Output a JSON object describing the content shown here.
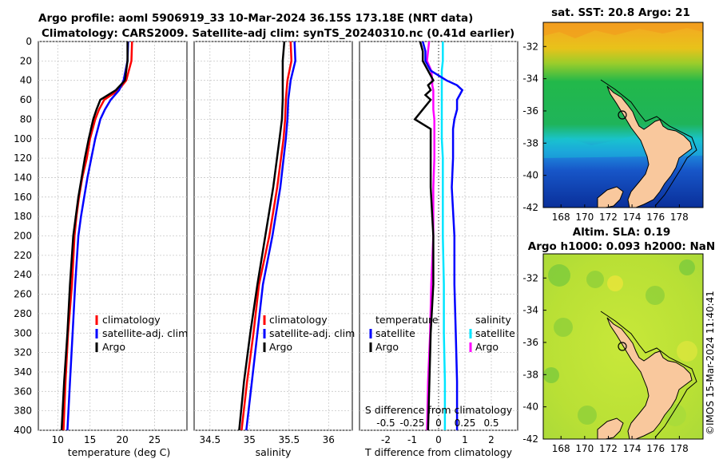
{
  "title": {
    "line1": "Argo profile: aoml 5906919_33 10-Mar-2024 36.15S 173.18E (NRT data)",
    "line2": "Climatology: CARS2009. Satellite-adj clim: synTS_20240310.nc (0.41d earlier)"
  },
  "map_sst_title": "sat. SST: 20.8 Argo: 21",
  "map_sla_title1": "Altim. SLA: 0.19",
  "map_sla_title2": "Argo h1000: 0.093 h2000: NaN",
  "stamp": "©IMOS 15-Mar-2024 11:40:41",
  "colors": {
    "climatology": "#ff0000",
    "satellite": "#0000ff",
    "argo": "#000000",
    "salt_sat": "#00e5ff",
    "salt_argo": "#ff00ff",
    "land": "#f9c89d"
  },
  "chart_data": [
    {
      "type": "line",
      "name": "temperature",
      "xlabel": "temperature (deg C)",
      "ylabel": "",
      "xlim": [
        7,
        30
      ],
      "ylim": [
        0,
        400
      ],
      "xticks": [
        10,
        15,
        20,
        25
      ],
      "yticks": [
        0,
        20,
        40,
        60,
        80,
        100,
        120,
        140,
        160,
        180,
        200,
        220,
        240,
        260,
        280,
        300,
        320,
        340,
        360,
        380,
        400
      ],
      "depth": [
        0,
        20,
        40,
        50,
        60,
        70,
        80,
        100,
        120,
        140,
        160,
        180,
        200,
        250,
        300,
        350,
        400
      ],
      "legend": [
        "climatology",
        "satellite-adj. clim",
        "Argo"
      ],
      "series": [
        {
          "name": "climatology",
          "values": [
            21.5,
            21.4,
            20.6,
            19.4,
            17.2,
            16.4,
            15.8,
            15.0,
            14.5,
            13.8,
            13.3,
            12.9,
            12.6,
            12.2,
            11.6,
            11.2,
            10.9
          ]
        },
        {
          "name": "satellite-adj. clim",
          "values": [
            20.9,
            20.8,
            20.2,
            19.5,
            18.2,
            17.3,
            16.6,
            15.8,
            15.2,
            14.6,
            14.1,
            13.6,
            13.2,
            12.7,
            12.3,
            11.9,
            11.5
          ]
        },
        {
          "name": "Argo",
          "values": [
            20.8,
            20.8,
            20.4,
            19.0,
            16.6,
            16.0,
            15.5,
            14.8,
            14.2,
            13.7,
            13.2,
            12.8,
            12.4,
            11.9,
            11.5,
            11.0,
            10.6
          ]
        }
      ]
    },
    {
      "type": "line",
      "name": "salinity",
      "xlabel": "salinity",
      "xlim": [
        34.3,
        36.3
      ],
      "ylim": [
        0,
        400
      ],
      "xticks": [
        34.5,
        35,
        35.5,
        36
      ],
      "depth": [
        0,
        20,
        40,
        60,
        80,
        100,
        150,
        200,
        250,
        300,
        350,
        400
      ],
      "legend": [
        "climatology",
        "satellite-adj. clim",
        "Argo"
      ],
      "series": [
        {
          "name": "climatology",
          "values": [
            35.52,
            35.53,
            35.48,
            35.46,
            35.45,
            35.43,
            35.35,
            35.25,
            35.12,
            35.05,
            34.97,
            34.9
          ]
        },
        {
          "name": "satellite-adj. clim",
          "values": [
            35.57,
            35.58,
            35.52,
            35.49,
            35.48,
            35.46,
            35.39,
            35.29,
            35.17,
            35.1,
            35.03,
            34.96
          ]
        },
        {
          "name": "Argo",
          "values": [
            35.44,
            35.42,
            35.42,
            35.42,
            35.41,
            35.38,
            35.3,
            35.2,
            35.1,
            35.01,
            34.93,
            34.87
          ]
        }
      ]
    },
    {
      "type": "line",
      "name": "differences",
      "xlabel": "T difference from climatology",
      "xlabel_top": "S difference from climatology",
      "xlim": [
        -3,
        3
      ],
      "ylim": [
        0,
        400
      ],
      "xticks": [
        -2,
        -1,
        0,
        1,
        2
      ],
      "xticks_top": [
        "-0.5",
        "-0.25",
        "0",
        "0.25",
        "0.5"
      ],
      "depth": [
        0,
        10,
        20,
        30,
        40,
        45,
        50,
        55,
        60,
        70,
        80,
        90,
        100,
        120,
        150,
        200,
        250,
        300,
        350,
        400
      ],
      "legend_t_title": "temperature",
      "legend_t": [
        "satellite",
        "Argo"
      ],
      "legend_s_title": "salinity",
      "legend_s": [
        "satellite",
        "Argo"
      ],
      "series": [
        {
          "name": "T satellite",
          "values": [
            -0.6,
            -0.5,
            -0.5,
            -0.3,
            0.3,
            0.7,
            0.9,
            0.8,
            0.7,
            0.7,
            0.6,
            0.55,
            0.55,
            0.55,
            0.5,
            0.6,
            0.6,
            0.65,
            0.7,
            0.7
          ]
        },
        {
          "name": "T Argo",
          "values": [
            -0.7,
            -0.6,
            -0.6,
            -0.4,
            -0.2,
            -0.4,
            -0.3,
            -0.5,
            -0.3,
            -0.6,
            -0.9,
            -0.3,
            -0.3,
            -0.3,
            -0.3,
            -0.2,
            -0.2,
            -0.3,
            -0.35,
            -0.4
          ]
        },
        {
          "name": "S satellite",
          "values": [
            0.04,
            0.04,
            0.04,
            0.03,
            0.03,
            0.03,
            0.03,
            0.03,
            0.03,
            0.03,
            0.03,
            0.03,
            0.03,
            0.04,
            0.04,
            0.04,
            0.05,
            0.05,
            0.06,
            0.06
          ]
        },
        {
          "name": "S Argo",
          "values": [
            -0.09,
            -0.1,
            -0.11,
            -0.07,
            -0.06,
            -0.06,
            -0.05,
            -0.05,
            -0.05,
            -0.05,
            -0.04,
            -0.04,
            -0.04,
            -0.04,
            -0.05,
            -0.05,
            -0.07,
            -0.08,
            -0.1,
            -0.11
          ]
        }
      ]
    },
    {
      "type": "heatmap",
      "name": "sst-map",
      "title": "sat. SST: 20.8 Argo: 21",
      "xlim": [
        166.5,
        180
      ],
      "ylim": [
        -42,
        -30.5
      ],
      "xticks": [
        168,
        170,
        172,
        174,
        176,
        178
      ],
      "yticks": [
        -32,
        -34,
        -36,
        -38,
        -40,
        -42
      ],
      "argo_position": {
        "lon": 173.18,
        "lat": -36.15
      }
    },
    {
      "type": "heatmap",
      "name": "sla-map",
      "title": "Altim. SLA: 0.19",
      "xlim": [
        166.5,
        180
      ],
      "ylim": [
        -42,
        -30.5
      ],
      "xticks": [
        168,
        170,
        172,
        174,
        176,
        178
      ],
      "yticks": [
        -32,
        -34,
        -36,
        -38,
        -40,
        -42
      ],
      "argo_position": {
        "lon": 173.18,
        "lat": -36.15
      }
    }
  ]
}
